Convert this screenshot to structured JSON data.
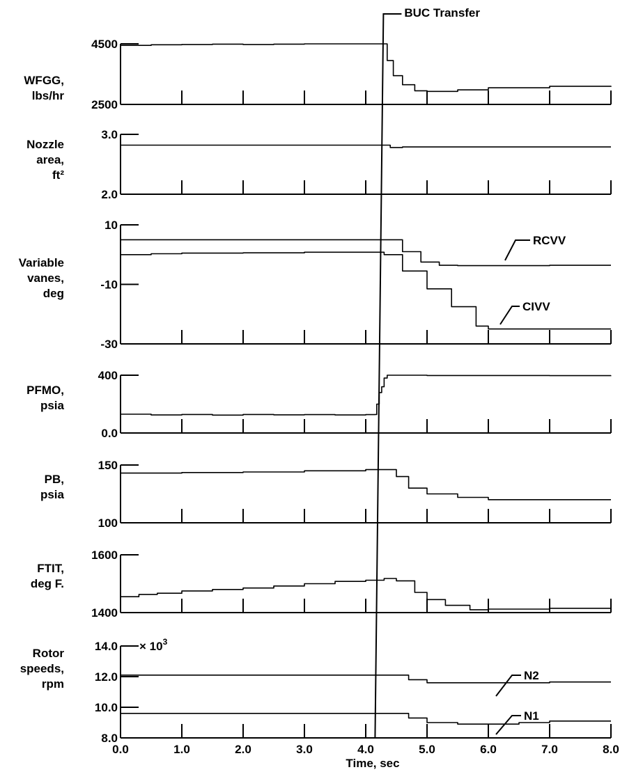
{
  "chart_data": {
    "type": "line",
    "event_marker": {
      "label": "BUC Transfer",
      "x": 4.22
    },
    "xaxis": {
      "label": "Time, sec",
      "range": [
        0,
        8
      ],
      "ticks": [
        "0.0",
        "1.0",
        "2.0",
        "3.0",
        "4.0",
        "5.0",
        "6.0",
        "7.0",
        "8.0"
      ]
    },
    "panels": [
      {
        "label": [
          "WFGG,",
          "lbs/hr"
        ],
        "ylim": [
          2500,
          4500
        ],
        "yticks": [
          {
            "text": "4500",
            "value": 4500
          },
          {
            "text": "2500",
            "value": 2500
          }
        ],
        "series": [
          {
            "name": "",
            "x": [
              0,
              0.5,
              1,
              1.5,
              2,
              2.5,
              3,
              3.5,
              4,
              4.3,
              4.35,
              4.45,
              4.6,
              4.8,
              5.0,
              5.5,
              6,
              7,
              8
            ],
            "y": [
              4450,
              4470,
              4480,
              4490,
              4480,
              4490,
              4500,
              4500,
              4500,
              4500,
              3950,
              3450,
              3150,
              2950,
              2930,
              2980,
              3050,
              3100,
              3080
            ]
          }
        ]
      },
      {
        "label": [
          "Nozzle",
          "area,",
          "ft²"
        ],
        "ylim": [
          2.0,
          3.0
        ],
        "yticks": [
          {
            "text": "3.0",
            "value": 3.0
          },
          {
            "text": "2.0",
            "value": 2.0
          }
        ],
        "series": [
          {
            "name": "",
            "x": [
              0,
              1,
              2,
              3,
              4,
              4.3,
              4.4,
              4.6,
              5,
              6,
              7,
              8
            ],
            "y": [
              2.82,
              2.82,
              2.82,
              2.82,
              2.82,
              2.82,
              2.78,
              2.79,
              2.79,
              2.79,
              2.79,
              2.79
            ]
          }
        ]
      },
      {
        "label": [
          "Variable",
          "vanes,",
          "deg"
        ],
        "ylim": [
          -30,
          10
        ],
        "yticks": [
          {
            "text": "10",
            "value": 10
          },
          {
            "text": "-10",
            "value": -10
          },
          {
            "text": "-30",
            "value": -30
          }
        ],
        "series": [
          {
            "name": "RCVV",
            "x": [
              0,
              1,
              2,
              3,
              4,
              4.3,
              4.6,
              4.9,
              5.2,
              5.5,
              6,
              7,
              8
            ],
            "y": [
              5,
              5,
              5,
              5,
              5,
              5,
              1,
              -2.5,
              -3.6,
              -3.7,
              -3.7,
              -3.6,
              -3.6
            ]
          },
          {
            "name": "CIVV",
            "x": [
              0,
              0.5,
              1,
              2,
              3,
              4,
              4.3,
              4.6,
              5,
              5.4,
              5.8,
              6,
              7,
              8
            ],
            "y": [
              0,
              0.3,
              0.5,
              0.6,
              0.8,
              0.8,
              0,
              -5.5,
              -11.5,
              -17.5,
              -24,
              -25,
              -25,
              -25
            ]
          }
        ]
      },
      {
        "label": [
          "PFMO,",
          "psia"
        ],
        "ylim": [
          0,
          400
        ],
        "yticks": [
          {
            "text": "400",
            "value": 400
          },
          {
            "text": "0.0",
            "value": 0
          }
        ],
        "series": [
          {
            "name": "",
            "x": [
              0,
              0.5,
              1,
              1.5,
              2,
              2.5,
              3,
              3.5,
              4,
              4.15,
              4.18,
              4.22,
              4.26,
              4.3,
              4.35,
              5,
              6,
              7,
              8
            ],
            "y": [
              130,
              125,
              128,
              124,
              128,
              126,
              127,
              125,
              127,
              128,
              200,
              280,
              320,
              380,
              400,
              398,
              398,
              397,
              398
            ]
          }
        ]
      },
      {
        "label": [
          "PB,",
          "psia"
        ],
        "ylim": [
          100,
          150
        ],
        "yticks": [
          {
            "text": "150",
            "value": 150
          },
          {
            "text": "100",
            "value": 100
          }
        ],
        "series": [
          {
            "name": "",
            "x": [
              0,
              1,
              2,
              3,
              4,
              4.3,
              4.5,
              4.7,
              5.0,
              5.5,
              6,
              7,
              8
            ],
            "y": [
              143,
              143.5,
              144,
              145,
              146,
              146,
              140,
              130,
              125,
              122,
              120,
              120,
              120
            ]
          }
        ]
      },
      {
        "label": [
          "FTIT,",
          "deg F."
        ],
        "ylim": [
          1400,
          1600
        ],
        "yticks": [
          {
            "text": "1600",
            "value": 1600
          },
          {
            "text": "1400",
            "value": 1400
          }
        ],
        "series": [
          {
            "name": "",
            "x": [
              0,
              0.3,
              0.6,
              1,
              1.5,
              2,
              2.5,
              3,
              3.5,
              4,
              4.3,
              4.5,
              4.8,
              5.0,
              5.3,
              5.7,
              6,
              7,
              8
            ],
            "y": [
              1455,
              1463,
              1467,
              1475,
              1480,
              1485,
              1492,
              1500,
              1508,
              1512,
              1518,
              1510,
              1470,
              1445,
              1425,
              1410,
              1412,
              1415,
              1415
            ]
          }
        ]
      },
      {
        "label": [
          "Rotor",
          "speeds,",
          "rpm"
        ],
        "ylim": [
          8.0,
          14.0
        ],
        "yticks": [
          {
            "text": "14.0",
            "value": 14.0
          },
          {
            "text": "12.0",
            "value": 12.0
          },
          {
            "text": "10.0",
            "value": 10.0
          },
          {
            "text": "8.0",
            "value": 8.0
          }
        ],
        "multiplier": [
          "× 10",
          "3"
        ],
        "series": [
          {
            "name": "N2",
            "x": [
              0,
              1,
              2,
              3,
              4,
              4.3,
              4.7,
              5.0,
              5.5,
              6,
              7,
              8
            ],
            "y": [
              12.1,
              12.1,
              12.1,
              12.1,
              12.1,
              12.1,
              11.8,
              11.6,
              11.6,
              11.6,
              11.65,
              11.65
            ]
          },
          {
            "name": "N1",
            "x": [
              0,
              1,
              2,
              3,
              4,
              4.3,
              4.7,
              5.0,
              5.5,
              6,
              6.5,
              7,
              8
            ],
            "y": [
              9.6,
              9.6,
              9.6,
              9.6,
              9.6,
              9.6,
              9.3,
              9.0,
              8.9,
              8.9,
              9.0,
              9.1,
              9.1
            ]
          }
        ]
      }
    ]
  }
}
